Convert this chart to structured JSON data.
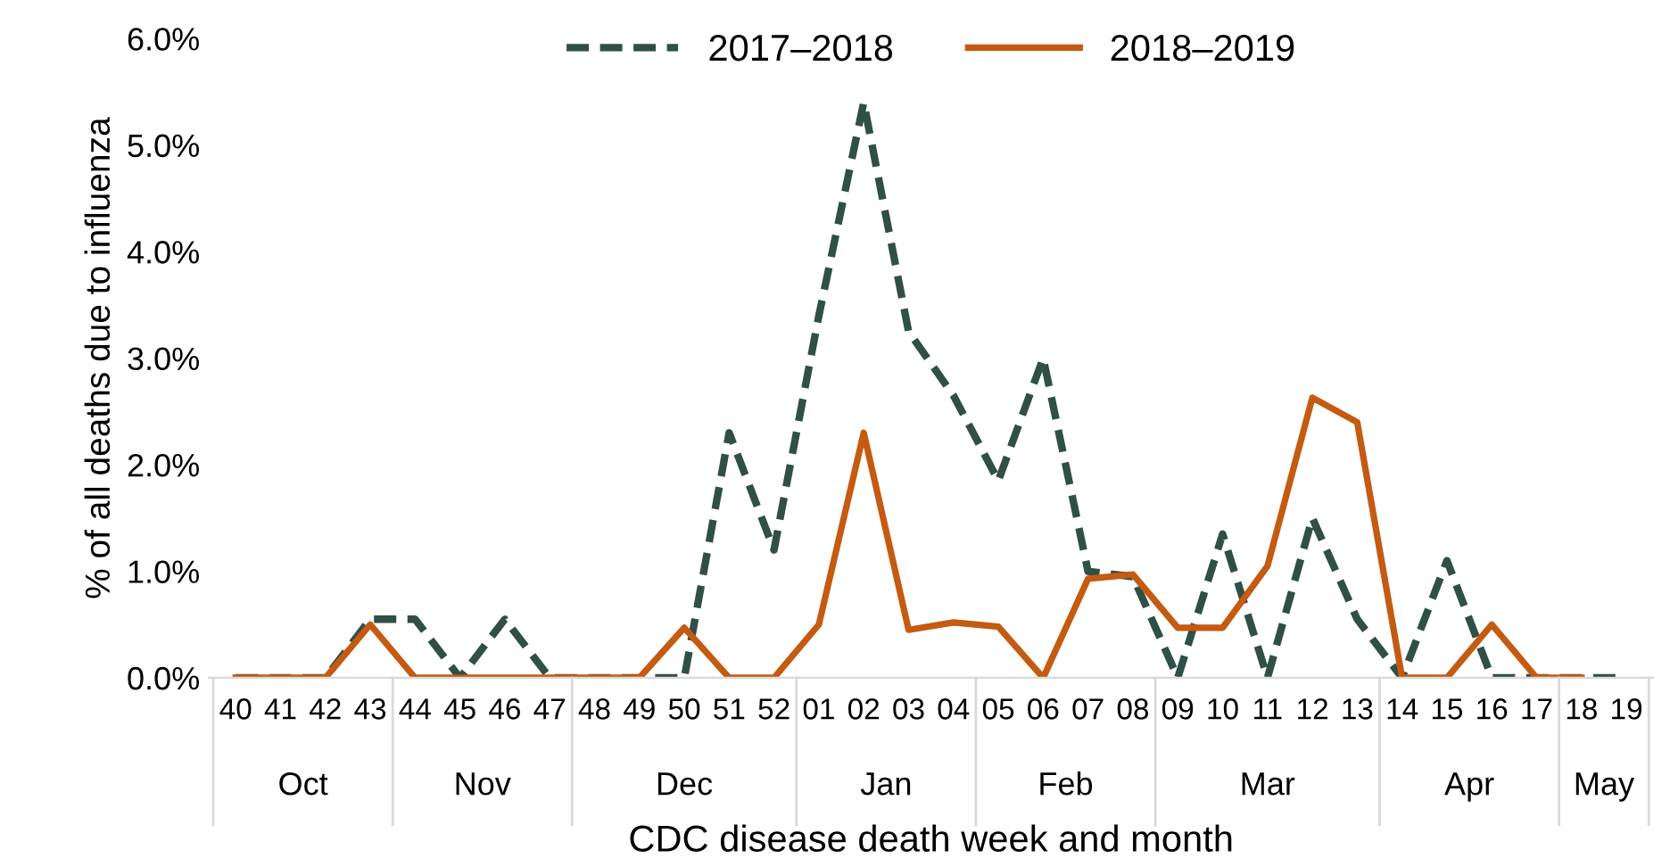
{
  "chart_data": {
    "type": "line",
    "xlabel": "CDC disease death week and month",
    "ylabel": "% of all deaths due to influenza",
    "categories": [
      "40",
      "41",
      "42",
      "43",
      "44",
      "45",
      "46",
      "47",
      "48",
      "49",
      "50",
      "51",
      "52",
      "01",
      "02",
      "03",
      "04",
      "05",
      "06",
      "07",
      "08",
      "09",
      "10",
      "11",
      "12",
      "13",
      "14",
      "15",
      "16",
      "17",
      "18",
      "19"
    ],
    "series": [
      {
        "name": "2017–2018",
        "color": "#2f4f47",
        "line_style": "dashed",
        "values": [
          0,
          0,
          0,
          0.55,
          0.55,
          0,
          0.55,
          0,
          0,
          0,
          0,
          2.3,
          1.2,
          3.4,
          5.4,
          3.25,
          2.65,
          1.85,
          3.0,
          1.0,
          0.95,
          0,
          1.35,
          0,
          1.5,
          0.55,
          0,
          1.1,
          0,
          0,
          0,
          0
        ]
      },
      {
        "name": "2018–2019",
        "color": "#c55a11",
        "line_style": "solid",
        "values": [
          0,
          0,
          0,
          0.5,
          0,
          0,
          0,
          0,
          0,
          0,
          0.47,
          0,
          0,
          0.5,
          2.3,
          0.45,
          0.52,
          0.48,
          0,
          0.93,
          0.97,
          0.47,
          0.47,
          1.05,
          2.63,
          2.4,
          0,
          0,
          0.5,
          0,
          0,
          null
        ]
      }
    ],
    "ylim": [
      0,
      6
    ],
    "yticks": [
      {
        "value": 0,
        "label": "0.0%"
      },
      {
        "value": 1,
        "label": "1.0%"
      },
      {
        "value": 2,
        "label": "2.0%"
      },
      {
        "value": 3,
        "label": "3.0%"
      },
      {
        "value": 4,
        "label": "4.0%"
      },
      {
        "value": 5,
        "label": "5.0%"
      },
      {
        "value": 6,
        "label": "6.0%"
      }
    ],
    "annotations": [
      "Oct",
      "Nov",
      "Dec",
      "Jan",
      "Feb",
      "Mar",
      "Apr",
      "May"
    ],
    "grid": false,
    "legend": "top",
    "marker": "none"
  }
}
